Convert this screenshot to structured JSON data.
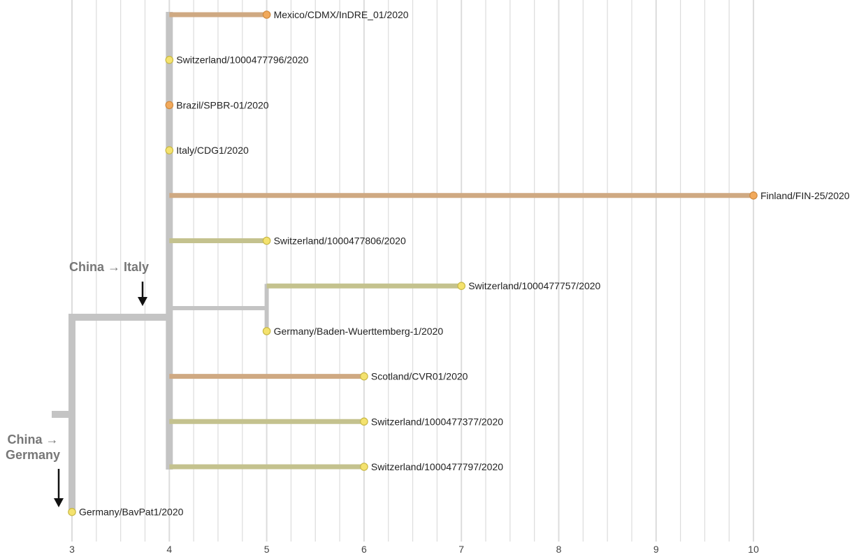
{
  "colors": {
    "grid": "#dcdcdc",
    "stem": "#c4c4c4",
    "branch_orange": "#cfa982",
    "branch_olive": "#c4c28e",
    "node_yellow": "#f4e26e",
    "node_orange": "#f1a95b",
    "node_stroke_yellow": "#c8b846",
    "node_stroke_orange": "#cf8a40",
    "arrow": "#111111"
  },
  "axis": {
    "min": 3,
    "max": 10,
    "ticks": [
      "3",
      "4",
      "5",
      "6",
      "7",
      "8",
      "9",
      "10"
    ]
  },
  "annotations": {
    "italy": "China → Italy",
    "germany_line1": "China →",
    "germany_line2": "Germany"
  },
  "tips": [
    {
      "label": "Mexico/CDMX/InDRE_01/2020",
      "x": 5,
      "node_color": "orange",
      "branch": "orange"
    },
    {
      "label": "Switzerland/1000477796/2020",
      "x": 4,
      "node_color": "yellow",
      "branch": "none"
    },
    {
      "label": "Brazil/SPBR-01/2020",
      "x": 4,
      "node_color": "orange",
      "branch": "none"
    },
    {
      "label": "Italy/CDG1/2020",
      "x": 4,
      "node_color": "yellow",
      "branch": "none"
    },
    {
      "label": "Finland/FIN-25/2020",
      "x": 10,
      "node_color": "orange",
      "branch": "orange"
    },
    {
      "label": "Switzerland/1000477806/2020",
      "x": 5,
      "node_color": "yellow",
      "branch": "olive"
    },
    {
      "label": "Switzerland/1000477757/2020",
      "x": 7,
      "node_color": "yellow",
      "branch": "olive"
    },
    {
      "label": "Germany/Baden-Wuerttemberg-1/2020",
      "x": 5,
      "node_color": "yellow",
      "branch": "none"
    },
    {
      "label": "Scotland/CVR01/2020",
      "x": 6,
      "node_color": "yellow",
      "branch": "orange"
    },
    {
      "label": "Switzerland/1000477377/2020",
      "x": 6,
      "node_color": "yellow",
      "branch": "olive"
    },
    {
      "label": "Switzerland/1000477797/2020",
      "x": 6,
      "node_color": "yellow",
      "branch": "olive"
    },
    {
      "label": "Germany/BavPat1/2020",
      "x": 3,
      "node_color": "yellow",
      "branch": "none"
    }
  ]
}
